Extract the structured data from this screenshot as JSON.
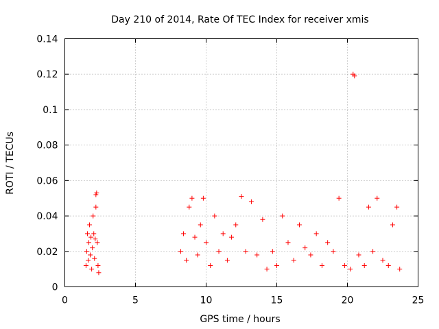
{
  "chart_data": {
    "type": "scatter",
    "title": "Day 210 of 2014, Rate Of TEC Index for receiver xmis",
    "xlabel": "GPS time / hours",
    "ylabel": "ROTI / TECUs",
    "xlim": [
      0,
      25
    ],
    "ylim": [
      0,
      0.14
    ],
    "grid": true,
    "marker": "+",
    "marker_color": "#ff0000",
    "x_ticks": [
      0,
      5,
      10,
      15,
      20,
      25
    ],
    "x_tick_labels": [
      "0",
      "5",
      "10",
      "15",
      "20",
      "25"
    ],
    "y_ticks": [
      0,
      0.02,
      0.04,
      0.06,
      0.08,
      0.1,
      0.12,
      0.14
    ],
    "y_tick_labels": [
      "0",
      "0.02",
      "0.04",
      "0.06",
      "0.08",
      "0.1",
      "0.12",
      "0.14"
    ],
    "series": [
      {
        "name": "ROTI",
        "points": [
          [
            1.5,
            0.012
          ],
          [
            1.55,
            0.02
          ],
          [
            1.6,
            0.03
          ],
          [
            1.65,
            0.015
          ],
          [
            1.7,
            0.025
          ],
          [
            1.75,
            0.035
          ],
          [
            1.8,
            0.018
          ],
          [
            1.85,
            0.028
          ],
          [
            1.9,
            0.01
          ],
          [
            1.95,
            0.022
          ],
          [
            2.0,
            0.04
          ],
          [
            2.05,
            0.03
          ],
          [
            2.1,
            0.016
          ],
          [
            2.15,
            0.027
          ],
          [
            2.2,
            0.045
          ],
          [
            2.25,
            0.053
          ],
          [
            2.3,
            0.025
          ],
          [
            2.35,
            0.012
          ],
          [
            2.4,
            0.008
          ],
          [
            2.2,
            0.052
          ],
          [
            8.2,
            0.02
          ],
          [
            8.4,
            0.03
          ],
          [
            8.6,
            0.015
          ],
          [
            8.8,
            0.045
          ],
          [
            9.0,
            0.05
          ],
          [
            9.2,
            0.028
          ],
          [
            9.4,
            0.018
          ],
          [
            9.6,
            0.035
          ],
          [
            9.8,
            0.05
          ],
          [
            10.0,
            0.025
          ],
          [
            10.3,
            0.012
          ],
          [
            10.6,
            0.04
          ],
          [
            10.9,
            0.02
          ],
          [
            11.2,
            0.03
          ],
          [
            11.5,
            0.015
          ],
          [
            11.8,
            0.028
          ],
          [
            12.1,
            0.035
          ],
          [
            12.5,
            0.051
          ],
          [
            12.8,
            0.02
          ],
          [
            13.2,
            0.048
          ],
          [
            13.6,
            0.018
          ],
          [
            14.0,
            0.038
          ],
          [
            14.3,
            0.01
          ],
          [
            14.7,
            0.02
          ],
          [
            15.0,
            0.012
          ],
          [
            15.4,
            0.04
          ],
          [
            15.8,
            0.025
          ],
          [
            16.2,
            0.015
          ],
          [
            16.6,
            0.035
          ],
          [
            17.0,
            0.022
          ],
          [
            17.4,
            0.018
          ],
          [
            17.8,
            0.03
          ],
          [
            18.2,
            0.012
          ],
          [
            18.6,
            0.025
          ],
          [
            19.0,
            0.02
          ],
          [
            19.4,
            0.05
          ],
          [
            19.8,
            0.012
          ],
          [
            20.2,
            0.01
          ],
          [
            20.4,
            0.12
          ],
          [
            20.5,
            0.119
          ],
          [
            20.8,
            0.018
          ],
          [
            21.2,
            0.012
          ],
          [
            21.5,
            0.045
          ],
          [
            21.8,
            0.02
          ],
          [
            22.1,
            0.05
          ],
          [
            22.5,
            0.015
          ],
          [
            22.9,
            0.012
          ],
          [
            23.2,
            0.035
          ],
          [
            23.5,
            0.045
          ],
          [
            23.7,
            0.01
          ]
        ]
      }
    ]
  }
}
